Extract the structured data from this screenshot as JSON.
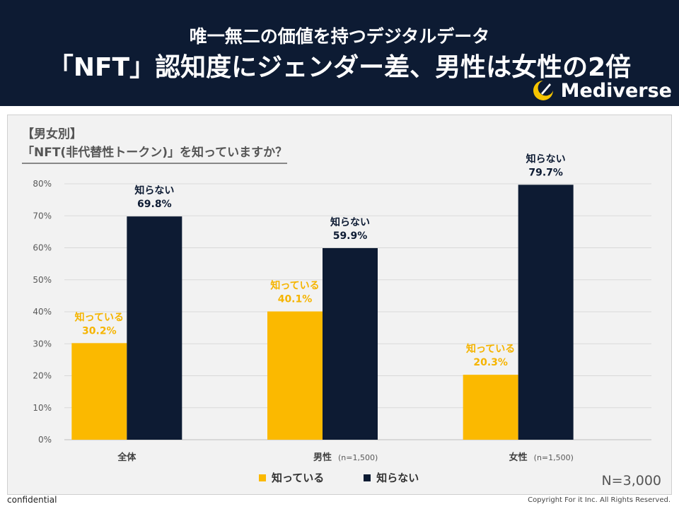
{
  "header": {
    "subtitle": "唯一無二の価値を持つデジタルデータ",
    "title": "「NFT」認知度にジェンダー差、男性は女性の2倍",
    "logo_text": "Mediverse"
  },
  "chart_heading": {
    "line1": "【男女別】",
    "line2": "「NFT(非代替性トークン)」を知っていますか？"
  },
  "chart_data": {
    "type": "bar",
    "title": "「NFT(非代替性トークン)」を知っていますか？",
    "categories": [
      "全体",
      "男性",
      "女性"
    ],
    "category_notes": [
      "",
      "(n=1,500)",
      "(n=1,500)"
    ],
    "series": [
      {
        "name": "知っている",
        "color": "#fbb900",
        "values": [
          30.2,
          40.1,
          20.3
        ]
      },
      {
        "name": "知らない",
        "color": "#0d1b33",
        "values": [
          69.8,
          59.9,
          79.7
        ]
      }
    ],
    "ylim": [
      0,
      80
    ],
    "yticks": [
      "0%",
      "10%",
      "20%",
      "30%",
      "40%",
      "50%",
      "60%",
      "70%",
      "80%"
    ],
    "grid": true,
    "xlabel": "",
    "ylabel": ""
  },
  "legend": {
    "known": "知っている",
    "unknown": "知らない"
  },
  "total_n": "N=3,000",
  "footer": {
    "confidential": "confidential",
    "copyright": "Copyright For it Inc. All Rights Reserved."
  }
}
